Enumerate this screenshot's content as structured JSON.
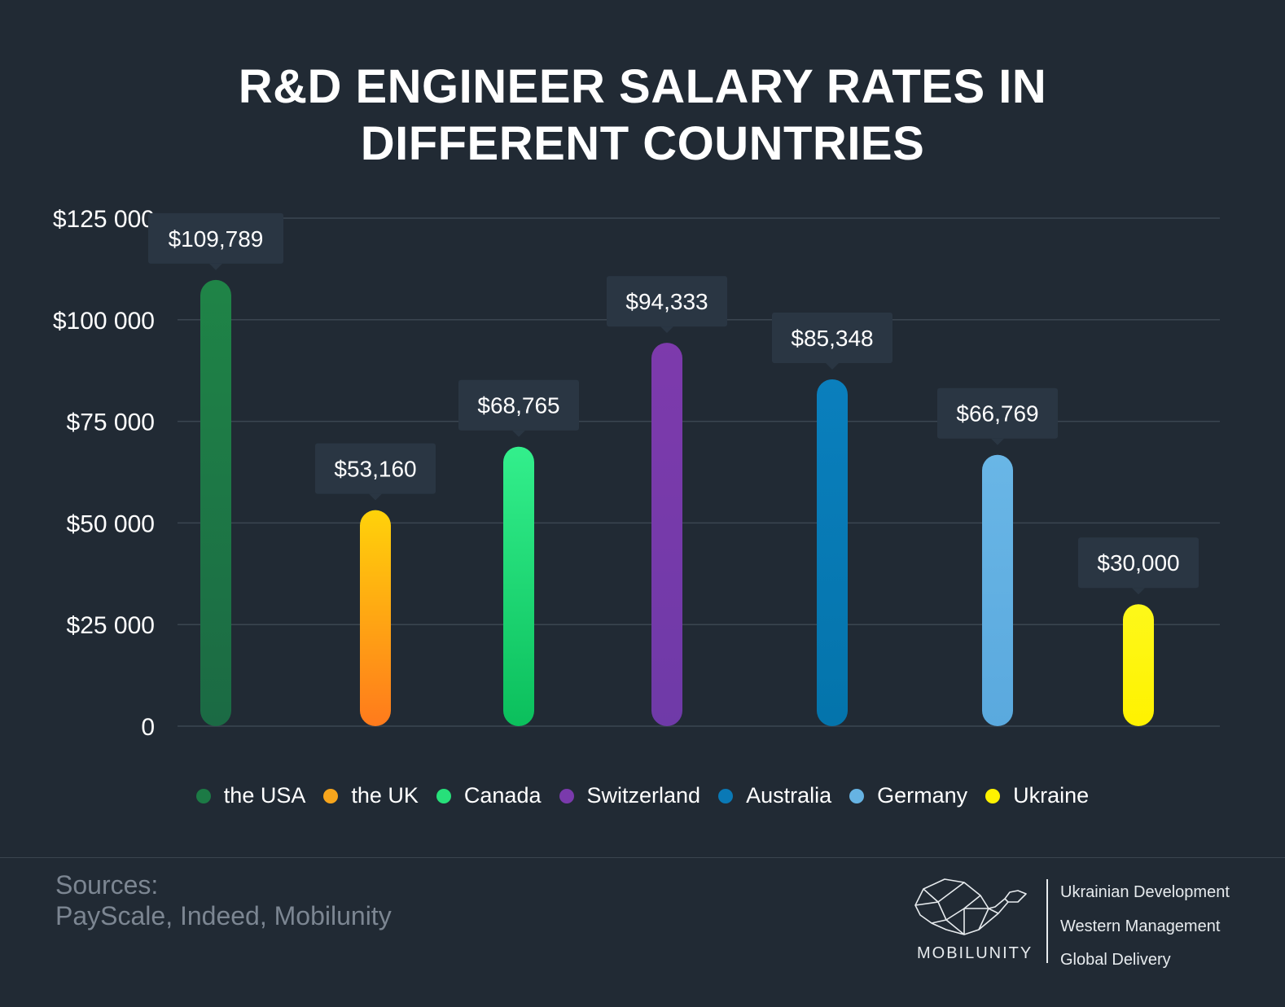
{
  "title_lines": [
    "R&D ENGINEER SALARY RATES IN",
    "DIFFERENT COUNTRIES"
  ],
  "chart_data": {
    "type": "bar",
    "title": "R&D ENGINEER SALARY RATES IN DIFFERENT COUNTRIES",
    "categories": [
      "the USA",
      "the UK",
      "Canada",
      "Switzerland",
      "Australia",
      "Germany",
      "Ukraine"
    ],
    "values": [
      109789,
      53160,
      68765,
      94333,
      85348,
      66769,
      30000
    ],
    "value_labels": [
      "$109,789",
      "$53,160",
      "$68,765",
      "$94,333",
      "$85,348",
      "$66,769",
      "$30,000"
    ],
    "colors": [
      [
        "#1f8447",
        "#1b6a44"
      ],
      [
        "#ffd20a",
        "#ff7a1c"
      ],
      [
        "#33ef8c",
        "#0bbf5c"
      ],
      [
        "#7d3aac",
        "#6f3aa8"
      ],
      [
        "#0a7fbd",
        "#0474ab"
      ],
      [
        "#69b6e6",
        "#5aa9de"
      ],
      [
        "#fdf81a",
        "#fff200"
      ]
    ],
    "legend_colors": [
      "#1c7a45",
      "#f7a51c",
      "#27e07a",
      "#7a3aac",
      "#0a79b6",
      "#66b3e3",
      "#fff200"
    ],
    "y_ticks": [
      0,
      25000,
      50000,
      75000,
      100000,
      125000
    ],
    "y_tick_labels": [
      "0",
      "$25 000",
      "$50 000",
      "$75 000",
      "$100 000",
      "$125 000"
    ],
    "ylim": [
      0,
      125000
    ],
    "xlabel": "",
    "ylabel": "",
    "grid": true,
    "legend_position": "bottom"
  },
  "footer": {
    "sources_label": "Sources:",
    "sources_text": "PayScale, Indeed, Mobilunity",
    "brand": "MOBILUNITY",
    "taglines": [
      "Ukrainian Development",
      "Western Management",
      "Global Delivery"
    ]
  }
}
